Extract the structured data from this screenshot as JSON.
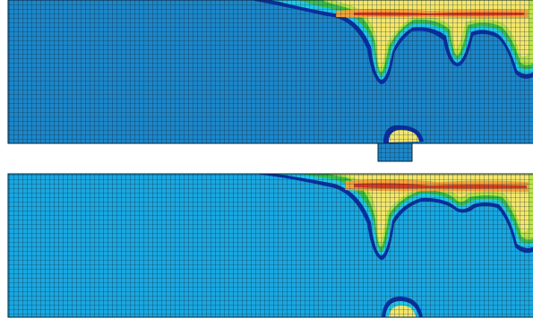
{
  "figure": {
    "caption": "",
    "panels": [
      {
        "id": "top",
        "label": ""
      },
      {
        "id": "bottom",
        "label": ""
      }
    ]
  },
  "colors": {
    "base": "#1d86c8",
    "base_light": "#1aa7e0",
    "cyan": "#22c8e6",
    "dark_blue": "#0a2fa3",
    "green": "#3bbf4a",
    "lime": "#b8e34a",
    "yellow": "#f3e66b",
    "orange": "#f2a43a",
    "red": "#d83a20",
    "mesh": "#0b2233"
  }
}
